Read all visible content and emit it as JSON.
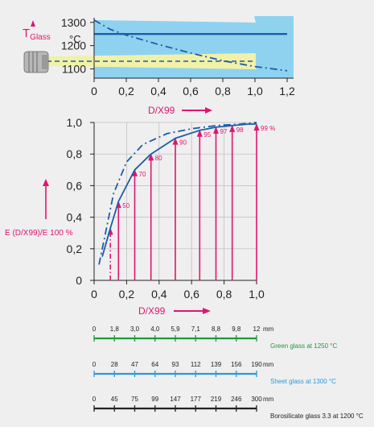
{
  "colors": {
    "blue": "#1f5ca8",
    "pink": "#e0156e",
    "light_blue": "#8ed2f0",
    "beam_yellow": "#f1f1a8",
    "green": "#1e9a3a",
    "sheet_blue": "#2a9ad8",
    "black": "#222222"
  },
  "chart_data": [
    {
      "type": "line",
      "title": "",
      "ylabel_main": "T",
      "ylabel_sub": "Glass",
      "yunit": "°C",
      "xlim": [
        0,
        1.2
      ],
      "ylim": [
        1060,
        1320
      ],
      "yticks": [
        "1300",
        "1200",
        "1100"
      ],
      "ytick_values": [
        1300,
        1200,
        1100
      ],
      "xticks": [
        "0",
        "0,2",
        "0,4",
        "0,6",
        "0,8",
        "1,0",
        "1,2"
      ],
      "xtick_values": [
        0,
        0.2,
        0.4,
        0.6,
        0.8,
        1.0,
        1.2
      ],
      "series": [
        {
          "style": "solid",
          "x": [
            0,
            1.2
          ],
          "y": [
            1250,
            1250
          ]
        },
        {
          "style": "dashdot",
          "x": [
            0,
            0.1,
            0.2,
            0.4,
            0.6,
            0.8,
            1.0,
            1.2
          ],
          "y": [
            1310,
            1270,
            1245,
            1205,
            1168,
            1135,
            1110,
            1092
          ]
        }
      ]
    },
    {
      "type": "line",
      "xlabel": "D/X99",
      "ylabel": "E (D/X99)/E 100 %",
      "xlim": [
        0,
        1.0
      ],
      "ylim": [
        0,
        1.0
      ],
      "xticks": [
        "0",
        "0,2",
        "0,4",
        "0,6",
        "0,8",
        "1,0"
      ],
      "xtick_values": [
        0,
        0.2,
        0.4,
        0.6,
        0.8,
        1.0
      ],
      "yticks": [
        "1,0",
        "0,8",
        "0,6",
        "0,4",
        "0,2",
        "0"
      ],
      "ytick_values": [
        1.0,
        0.8,
        0.6,
        0.4,
        0.2,
        0
      ],
      "series": [
        {
          "style": "solid",
          "x": [
            0.05,
            0.1,
            0.15,
            0.25,
            0.35,
            0.5,
            0.65,
            0.75,
            0.85,
            0.95,
            1.0
          ],
          "y": [
            0.15,
            0.33,
            0.5,
            0.7,
            0.8,
            0.9,
            0.95,
            0.97,
            0.98,
            0.99,
            0.99
          ]
        },
        {
          "style": "dashdot",
          "x": [
            0.03,
            0.08,
            0.12,
            0.2,
            0.3,
            0.45,
            0.6,
            0.75,
            0.9,
            1.0
          ],
          "y": [
            0.1,
            0.35,
            0.55,
            0.75,
            0.86,
            0.93,
            0.96,
            0.98,
            0.99,
            1.0
          ]
        }
      ],
      "arrows": [
        {
          "x": 0.15,
          "y": 0.5,
          "label": "50"
        },
        {
          "x": 0.25,
          "y": 0.7,
          "label": "70"
        },
        {
          "x": 0.35,
          "y": 0.8,
          "label": "80"
        },
        {
          "x": 0.5,
          "y": 0.9,
          "label": "90"
        },
        {
          "x": 0.65,
          "y": 0.95,
          "label": "95"
        },
        {
          "x": 0.75,
          "y": 0.97,
          "label": "97"
        },
        {
          "x": 0.85,
          "y": 0.98,
          "label": "98"
        },
        {
          "x": 1.0,
          "y": 0.99,
          "label": "99 %"
        }
      ],
      "dashed_arrow": {
        "x": 0.1,
        "y": 0.33
      }
    }
  ],
  "scales": [
    {
      "ticks": [
        "0",
        "1,8",
        "3,0",
        "4,0",
        "5,9",
        "7,1",
        "8,8",
        "9,8",
        "12"
      ],
      "unit": "mm",
      "label": "Green glass at 1250 °C",
      "color": "green"
    },
    {
      "ticks": [
        "0",
        "28",
        "47",
        "64",
        "93",
        "112",
        "139",
        "156",
        "190"
      ],
      "unit": "mm",
      "label": "Sheet glass at 1300 °C",
      "color": "sheet_blue"
    },
    {
      "ticks": [
        "0",
        "45",
        "75",
        "99",
        "147",
        "177",
        "219",
        "246",
        "300"
      ],
      "unit": "mm",
      "label": "Borosilicate glass 3.3 at 1200 °C",
      "color": "black"
    }
  ]
}
